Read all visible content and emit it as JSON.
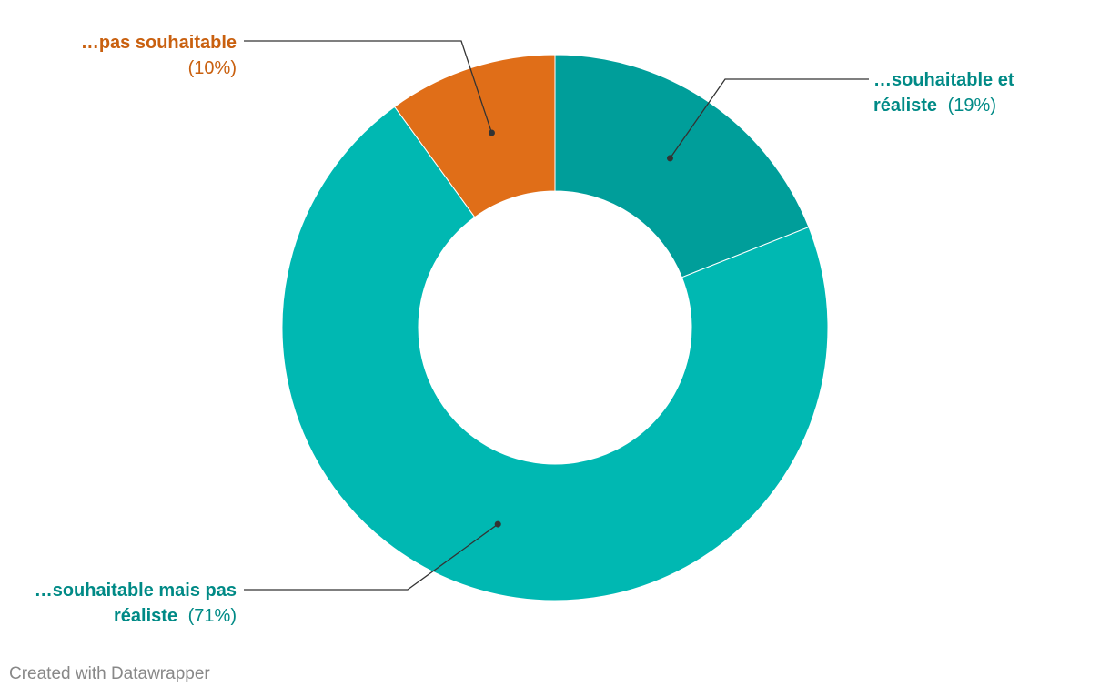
{
  "chart_data": {
    "type": "pie",
    "variant": "donut",
    "slices": [
      {
        "label_line1": "…souhaitable et",
        "label_line2": "réaliste",
        "pct": "(19%)",
        "value": 19,
        "color": "#009e9a",
        "text_color": "#008a86"
      },
      {
        "label_line1": "…souhaitable mais pas",
        "label_line2": "réaliste",
        "pct": "(71%)",
        "value": 71,
        "color": "#00b8b2",
        "text_color": "#008a86"
      },
      {
        "label_line1": "…pas souhaitable",
        "label_line2": "",
        "pct": "(10%)",
        "value": 10,
        "color": "#e06e18",
        "text_color": "#c9600f"
      }
    ]
  },
  "footer": "Created with Datawrapper"
}
